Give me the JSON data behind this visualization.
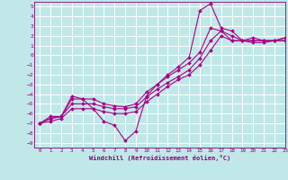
{
  "background_color": "#c0e8e8",
  "grid_color": "#ffffff",
  "line_color": "#aa0088",
  "marker": "D",
  "marker_size": 2,
  "xlabel": "Windchill (Refroidissement éolien,°C)",
  "xlim": [
    -0.5,
    23
  ],
  "ylim": [
    -9.5,
    5.5
  ],
  "xticks": [
    0,
    1,
    2,
    3,
    4,
    5,
    6,
    7,
    8,
    9,
    10,
    11,
    12,
    13,
    14,
    15,
    16,
    17,
    18,
    19,
    20,
    21,
    22,
    23
  ],
  "yticks": [
    5,
    4,
    3,
    2,
    1,
    0,
    -1,
    -2,
    -3,
    -4,
    -5,
    -6,
    -7,
    -8,
    -9
  ],
  "line1_x": [
    0,
    1,
    2,
    3,
    4,
    5,
    6,
    7,
    8,
    9,
    10,
    11,
    12,
    13,
    14,
    15,
    16,
    17,
    18,
    19,
    20,
    21,
    22,
    23
  ],
  "line1_y": [
    -7.0,
    -6.3,
    -6.3,
    -4.2,
    -4.5,
    -5.5,
    -6.8,
    -7.2,
    -8.8,
    -7.8,
    -4.2,
    -3.0,
    -2.0,
    -1.2,
    -0.2,
    4.6,
    5.3,
    2.8,
    2.5,
    1.5,
    1.3,
    1.3,
    1.5,
    1.5
  ],
  "line2_x": [
    0,
    1,
    2,
    3,
    4,
    5,
    6,
    7,
    8,
    9,
    10,
    11,
    12,
    13,
    14,
    15,
    16,
    17,
    18,
    19,
    20,
    21,
    22,
    23
  ],
  "line2_y": [
    -7.0,
    -6.5,
    -6.3,
    -4.5,
    -4.5,
    -4.5,
    -5.0,
    -5.2,
    -5.3,
    -5.0,
    -3.8,
    -3.0,
    -2.2,
    -1.5,
    -0.8,
    0.3,
    2.8,
    2.5,
    1.5,
    1.5,
    1.5,
    1.5,
    1.5,
    1.5
  ],
  "line3_x": [
    0,
    1,
    2,
    3,
    4,
    5,
    6,
    7,
    8,
    9,
    10,
    11,
    12,
    13,
    14,
    15,
    16,
    17,
    18,
    19,
    20,
    21,
    22,
    23
  ],
  "line3_y": [
    -7.0,
    -6.5,
    -6.3,
    -5.0,
    -5.0,
    -5.0,
    -5.3,
    -5.5,
    -5.5,
    -5.3,
    -4.3,
    -3.5,
    -2.8,
    -2.2,
    -1.5,
    -0.3,
    1.5,
    2.5,
    2.0,
    1.5,
    1.5,
    1.5,
    1.5,
    1.8
  ],
  "line4_x": [
    0,
    1,
    2,
    3,
    4,
    5,
    6,
    7,
    8,
    9,
    10,
    11,
    12,
    13,
    14,
    15,
    16,
    17,
    18,
    19,
    20,
    21,
    22,
    23
  ],
  "line4_y": [
    -7.0,
    -6.8,
    -6.5,
    -5.5,
    -5.5,
    -5.5,
    -5.8,
    -6.0,
    -6.0,
    -5.8,
    -4.8,
    -4.0,
    -3.2,
    -2.5,
    -2.0,
    -1.0,
    0.5,
    2.0,
    1.5,
    1.5,
    1.8,
    1.5,
    1.5,
    1.8
  ]
}
